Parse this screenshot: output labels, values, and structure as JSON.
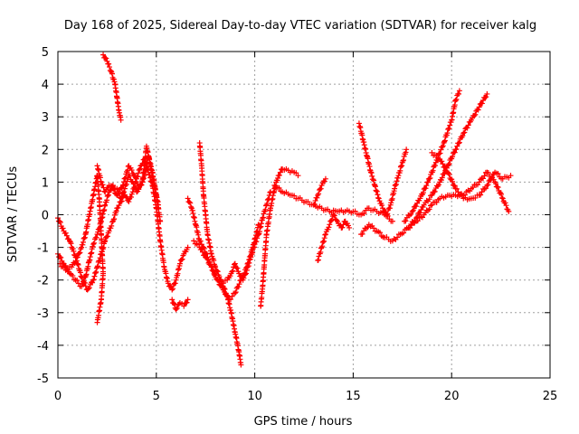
{
  "chart_data": {
    "type": "scatter",
    "title": "Day 168 of 2025, Sidereal Day-to-day VTEC variation (SDTVAR) for receiver kalg",
    "xlabel": "GPS time / hours",
    "ylabel": "SDTVAR / TECUs",
    "xlim": [
      0,
      25
    ],
    "ylim": [
      -5,
      5
    ],
    "xticks": [
      0,
      5,
      10,
      15,
      20,
      25
    ],
    "yticks": [
      -5,
      -4,
      -3,
      -2,
      -1,
      0,
      1,
      2,
      3,
      4,
      5
    ],
    "grid": true,
    "marker": "+",
    "color": "#ff0000",
    "series": [
      {
        "name": "s1",
        "points": [
          [
            0,
            -0.1
          ],
          [
            0.3,
            -0.5
          ],
          [
            0.6,
            -0.8
          ],
          [
            0.9,
            -1.3
          ],
          [
            1.2,
            -1.9
          ],
          [
            1.5,
            -2.3
          ],
          [
            1.8,
            -2.0
          ],
          [
            2.0,
            -1.6
          ],
          [
            2.2,
            -1.2
          ],
          [
            2.4,
            -0.8
          ],
          [
            2.6,
            -0.5
          ],
          [
            2.8,
            -0.2
          ],
          [
            3.0,
            0.2
          ],
          [
            3.2,
            0.4
          ],
          [
            3.4,
            0.6
          ],
          [
            3.6,
            0.4
          ],
          [
            3.8,
            0.7
          ],
          [
            4.0,
            1.1
          ],
          [
            4.2,
            1.5
          ],
          [
            4.4,
            1.7
          ],
          [
            4.6,
            1.3
          ],
          [
            4.8,
            0.9
          ],
          [
            5.0,
            0.2
          ],
          [
            5.2,
            -0.8
          ],
          [
            5.4,
            -1.6
          ],
          [
            5.6,
            -2.1
          ],
          [
            5.8,
            -2.3
          ],
          [
            6.0,
            -2.0
          ],
          [
            6.2,
            -1.5
          ],
          [
            6.4,
            -1.2
          ],
          [
            6.6,
            -1.0
          ]
        ]
      },
      {
        "name": "s2",
        "points": [
          [
            0,
            -1.2
          ],
          [
            0.3,
            -1.5
          ],
          [
            0.6,
            -1.8
          ],
          [
            0.9,
            -2.0
          ],
          [
            1.2,
            -2.2
          ],
          [
            1.4,
            -1.9
          ],
          [
            1.6,
            -1.4
          ],
          [
            1.8,
            -0.9
          ],
          [
            2.0,
            -0.6
          ],
          [
            2.2,
            -0.2
          ],
          [
            2.4,
            0.3
          ],
          [
            2.6,
            0.7
          ],
          [
            2.8,
            0.9
          ],
          [
            3.0,
            0.8
          ],
          [
            3.2,
            0.5
          ],
          [
            3.4,
            0.8
          ],
          [
            3.6,
            1.2
          ],
          [
            3.8,
            1.0
          ],
          [
            4.0,
            0.7
          ],
          [
            4.2,
            0.9
          ],
          [
            4.4,
            1.2
          ],
          [
            4.6,
            1.8
          ],
          [
            4.8,
            1.3
          ],
          [
            5.0,
            0.6
          ],
          [
            5.2,
            -0.2
          ]
        ]
      },
      {
        "name": "s3",
        "points": [
          [
            0.1,
            -1.5
          ],
          [
            0.4,
            -1.7
          ],
          [
            0.7,
            -1.6
          ],
          [
            1.0,
            -1.3
          ],
          [
            1.2,
            -1.0
          ],
          [
            1.4,
            -0.6
          ],
          [
            1.6,
            0.0
          ],
          [
            1.8,
            0.6
          ],
          [
            2.0,
            1.2
          ],
          [
            2.1,
            0.5
          ],
          [
            2.2,
            -0.6
          ],
          [
            2.3,
            -1.8
          ],
          [
            2.2,
            -2.6
          ],
          [
            2.0,
            -3.3
          ]
        ]
      },
      {
        "name": "s4",
        "points": [
          [
            2.3,
            4.9
          ],
          [
            2.5,
            4.7
          ],
          [
            2.7,
            4.4
          ],
          [
            2.9,
            4.0
          ],
          [
            3.0,
            3.6
          ],
          [
            3.1,
            3.2
          ],
          [
            3.2,
            2.9
          ]
        ]
      },
      {
        "name": "s5",
        "points": [
          [
            2.0,
            1.5
          ],
          [
            2.2,
            1.0
          ],
          [
            2.4,
            0.7
          ],
          [
            2.6,
            0.9
          ],
          [
            2.8,
            0.8
          ],
          [
            3.0,
            0.6
          ],
          [
            3.3,
            0.9
          ],
          [
            3.6,
            1.5
          ],
          [
            3.9,
            1.2
          ],
          [
            4.1,
            0.8
          ],
          [
            4.3,
            1.0
          ],
          [
            4.5,
            2.1
          ],
          [
            4.7,
            1.5
          ],
          [
            4.9,
            0.9
          ],
          [
            5.1,
            0.3
          ]
        ]
      },
      {
        "name": "s6",
        "points": [
          [
            5.8,
            -2.6
          ],
          [
            6.0,
            -2.9
          ],
          [
            6.2,
            -2.7
          ],
          [
            6.4,
            -2.8
          ],
          [
            6.6,
            -2.6
          ]
        ]
      },
      {
        "name": "s7",
        "points": [
          [
            6.6,
            0.5
          ],
          [
            6.8,
            0.2
          ],
          [
            7.0,
            -0.3
          ],
          [
            7.2,
            -0.8
          ],
          [
            7.4,
            -1.0
          ],
          [
            7.6,
            -1.3
          ],
          [
            7.8,
            -1.6
          ],
          [
            8.0,
            -1.9
          ],
          [
            8.2,
            -2.0
          ],
          [
            8.4,
            -2.1
          ],
          [
            8.6,
            -2.0
          ],
          [
            8.8,
            -1.8
          ],
          [
            9.0,
            -1.5
          ],
          [
            9.2,
            -1.8
          ],
          [
            9.4,
            -2.0
          ],
          [
            9.6,
            -1.7
          ],
          [
            9.8,
            -1.3
          ],
          [
            10.0,
            -0.9
          ],
          [
            10.2,
            -0.6
          ],
          [
            10.4,
            -0.1
          ],
          [
            10.6,
            0.3
          ],
          [
            10.8,
            0.7
          ]
        ]
      },
      {
        "name": "s8",
        "points": [
          [
            7.2,
            2.2
          ],
          [
            7.3,
            1.5
          ],
          [
            7.4,
            0.6
          ],
          [
            7.5,
            0.0
          ],
          [
            7.6,
            -0.6
          ],
          [
            7.8,
            -1.2
          ],
          [
            8.0,
            -1.6
          ],
          [
            8.2,
            -1.9
          ],
          [
            8.4,
            -2.2
          ],
          [
            8.6,
            -2.5
          ],
          [
            8.8,
            -3.0
          ],
          [
            9.0,
            -3.6
          ],
          [
            9.2,
            -4.2
          ],
          [
            9.3,
            -4.6
          ]
        ]
      },
      {
        "name": "s9",
        "points": [
          [
            6.9,
            -0.8
          ],
          [
            7.2,
            -1.0
          ],
          [
            7.5,
            -1.3
          ],
          [
            7.8,
            -1.6
          ],
          [
            8.1,
            -2.0
          ],
          [
            8.4,
            -2.3
          ],
          [
            8.7,
            -2.6
          ],
          [
            9.0,
            -2.4
          ],
          [
            9.3,
            -2.0
          ],
          [
            9.6,
            -1.6
          ],
          [
            9.9,
            -1.0
          ],
          [
            10.2,
            -0.3
          ]
        ]
      },
      {
        "name": "s10",
        "points": [
          [
            10.3,
            -2.8
          ],
          [
            10.4,
            -2.2
          ],
          [
            10.5,
            -1.4
          ],
          [
            10.6,
            -0.6
          ],
          [
            10.8,
            0.2
          ],
          [
            11.0,
            0.8
          ],
          [
            11.2,
            1.2
          ],
          [
            11.4,
            1.4
          ],
          [
            11.6,
            1.4
          ],
          [
            11.8,
            1.3
          ],
          [
            12.0,
            1.3
          ],
          [
            12.2,
            1.2
          ]
        ]
      },
      {
        "name": "s11",
        "points": [
          [
            11.0,
            0.9
          ],
          [
            11.4,
            0.7
          ],
          [
            11.8,
            0.6
          ],
          [
            12.2,
            0.5
          ],
          [
            12.6,
            0.4
          ],
          [
            13.0,
            0.3
          ],
          [
            13.4,
            0.2
          ],
          [
            13.8,
            0.1
          ],
          [
            14.2,
            0.1
          ],
          [
            14.6,
            0.1
          ],
          [
            15.0,
            0.1
          ],
          [
            15.4,
            0.0
          ],
          [
            15.8,
            0.2
          ],
          [
            16.2,
            0.1
          ],
          [
            16.6,
            0.0
          ],
          [
            17.0,
            -0.2
          ]
        ]
      },
      {
        "name": "s12",
        "points": [
          [
            13.0,
            0.3
          ],
          [
            13.2,
            0.6
          ],
          [
            13.4,
            0.9
          ],
          [
            13.6,
            1.1
          ]
        ]
      },
      {
        "name": "s13",
        "points": [
          [
            13.2,
            -1.4
          ],
          [
            13.4,
            -1.0
          ],
          [
            13.6,
            -0.6
          ],
          [
            13.8,
            -0.3
          ],
          [
            14.0,
            0.0
          ],
          [
            14.2,
            -0.2
          ],
          [
            14.4,
            -0.4
          ],
          [
            14.6,
            -0.2
          ],
          [
            14.8,
            -0.4
          ]
        ]
      },
      {
        "name": "s14",
        "points": [
          [
            15.3,
            2.8
          ],
          [
            15.5,
            2.3
          ],
          [
            15.7,
            1.8
          ],
          [
            15.9,
            1.3
          ],
          [
            16.1,
            0.9
          ],
          [
            16.3,
            0.5
          ],
          [
            16.5,
            0.2
          ],
          [
            16.7,
            0.0
          ],
          [
            16.9,
            0.3
          ],
          [
            17.1,
            0.8
          ],
          [
            17.3,
            1.2
          ],
          [
            17.5,
            1.6
          ],
          [
            17.7,
            2.0
          ]
        ]
      },
      {
        "name": "s15",
        "points": [
          [
            15.4,
            -0.6
          ],
          [
            15.8,
            -0.3
          ],
          [
            16.2,
            -0.5
          ],
          [
            16.6,
            -0.7
          ],
          [
            17.0,
            -0.8
          ],
          [
            17.4,
            -0.6
          ],
          [
            17.8,
            -0.4
          ],
          [
            18.2,
            -0.2
          ],
          [
            18.6,
            0.0
          ],
          [
            19.0,
            0.3
          ],
          [
            19.4,
            0.5
          ],
          [
            19.8,
            0.6
          ],
          [
            20.2,
            0.6
          ],
          [
            20.6,
            0.6
          ],
          [
            21.0,
            0.8
          ],
          [
            21.4,
            1.0
          ],
          [
            21.8,
            1.3
          ],
          [
            22.2,
            1.0
          ],
          [
            22.6,
            0.5
          ],
          [
            22.9,
            0.1
          ]
        ]
      },
      {
        "name": "s16",
        "points": [
          [
            17.6,
            -0.2
          ],
          [
            18.0,
            0.1
          ],
          [
            18.4,
            0.5
          ],
          [
            18.8,
            1.0
          ],
          [
            19.2,
            1.6
          ],
          [
            19.6,
            2.2
          ],
          [
            20.0,
            2.9
          ],
          [
            20.2,
            3.5
          ],
          [
            20.4,
            3.8
          ]
        ]
      },
      {
        "name": "s17",
        "points": [
          [
            17.8,
            -0.4
          ],
          [
            18.2,
            -0.1
          ],
          [
            18.6,
            0.3
          ],
          [
            19.0,
            0.6
          ],
          [
            19.4,
            1.0
          ],
          [
            19.8,
            1.5
          ],
          [
            20.2,
            2.0
          ],
          [
            20.6,
            2.5
          ],
          [
            21.0,
            2.9
          ],
          [
            21.4,
            3.3
          ],
          [
            21.8,
            3.7
          ]
        ]
      },
      {
        "name": "s18",
        "points": [
          [
            19.0,
            1.9
          ],
          [
            19.4,
            1.7
          ],
          [
            19.8,
            1.3
          ],
          [
            20.2,
            0.8
          ],
          [
            20.6,
            0.5
          ],
          [
            21.0,
            0.5
          ],
          [
            21.4,
            0.6
          ],
          [
            21.8,
            0.9
          ],
          [
            22.2,
            1.3
          ],
          [
            22.6,
            1.1
          ],
          [
            23.0,
            1.2
          ]
        ]
      }
    ]
  }
}
